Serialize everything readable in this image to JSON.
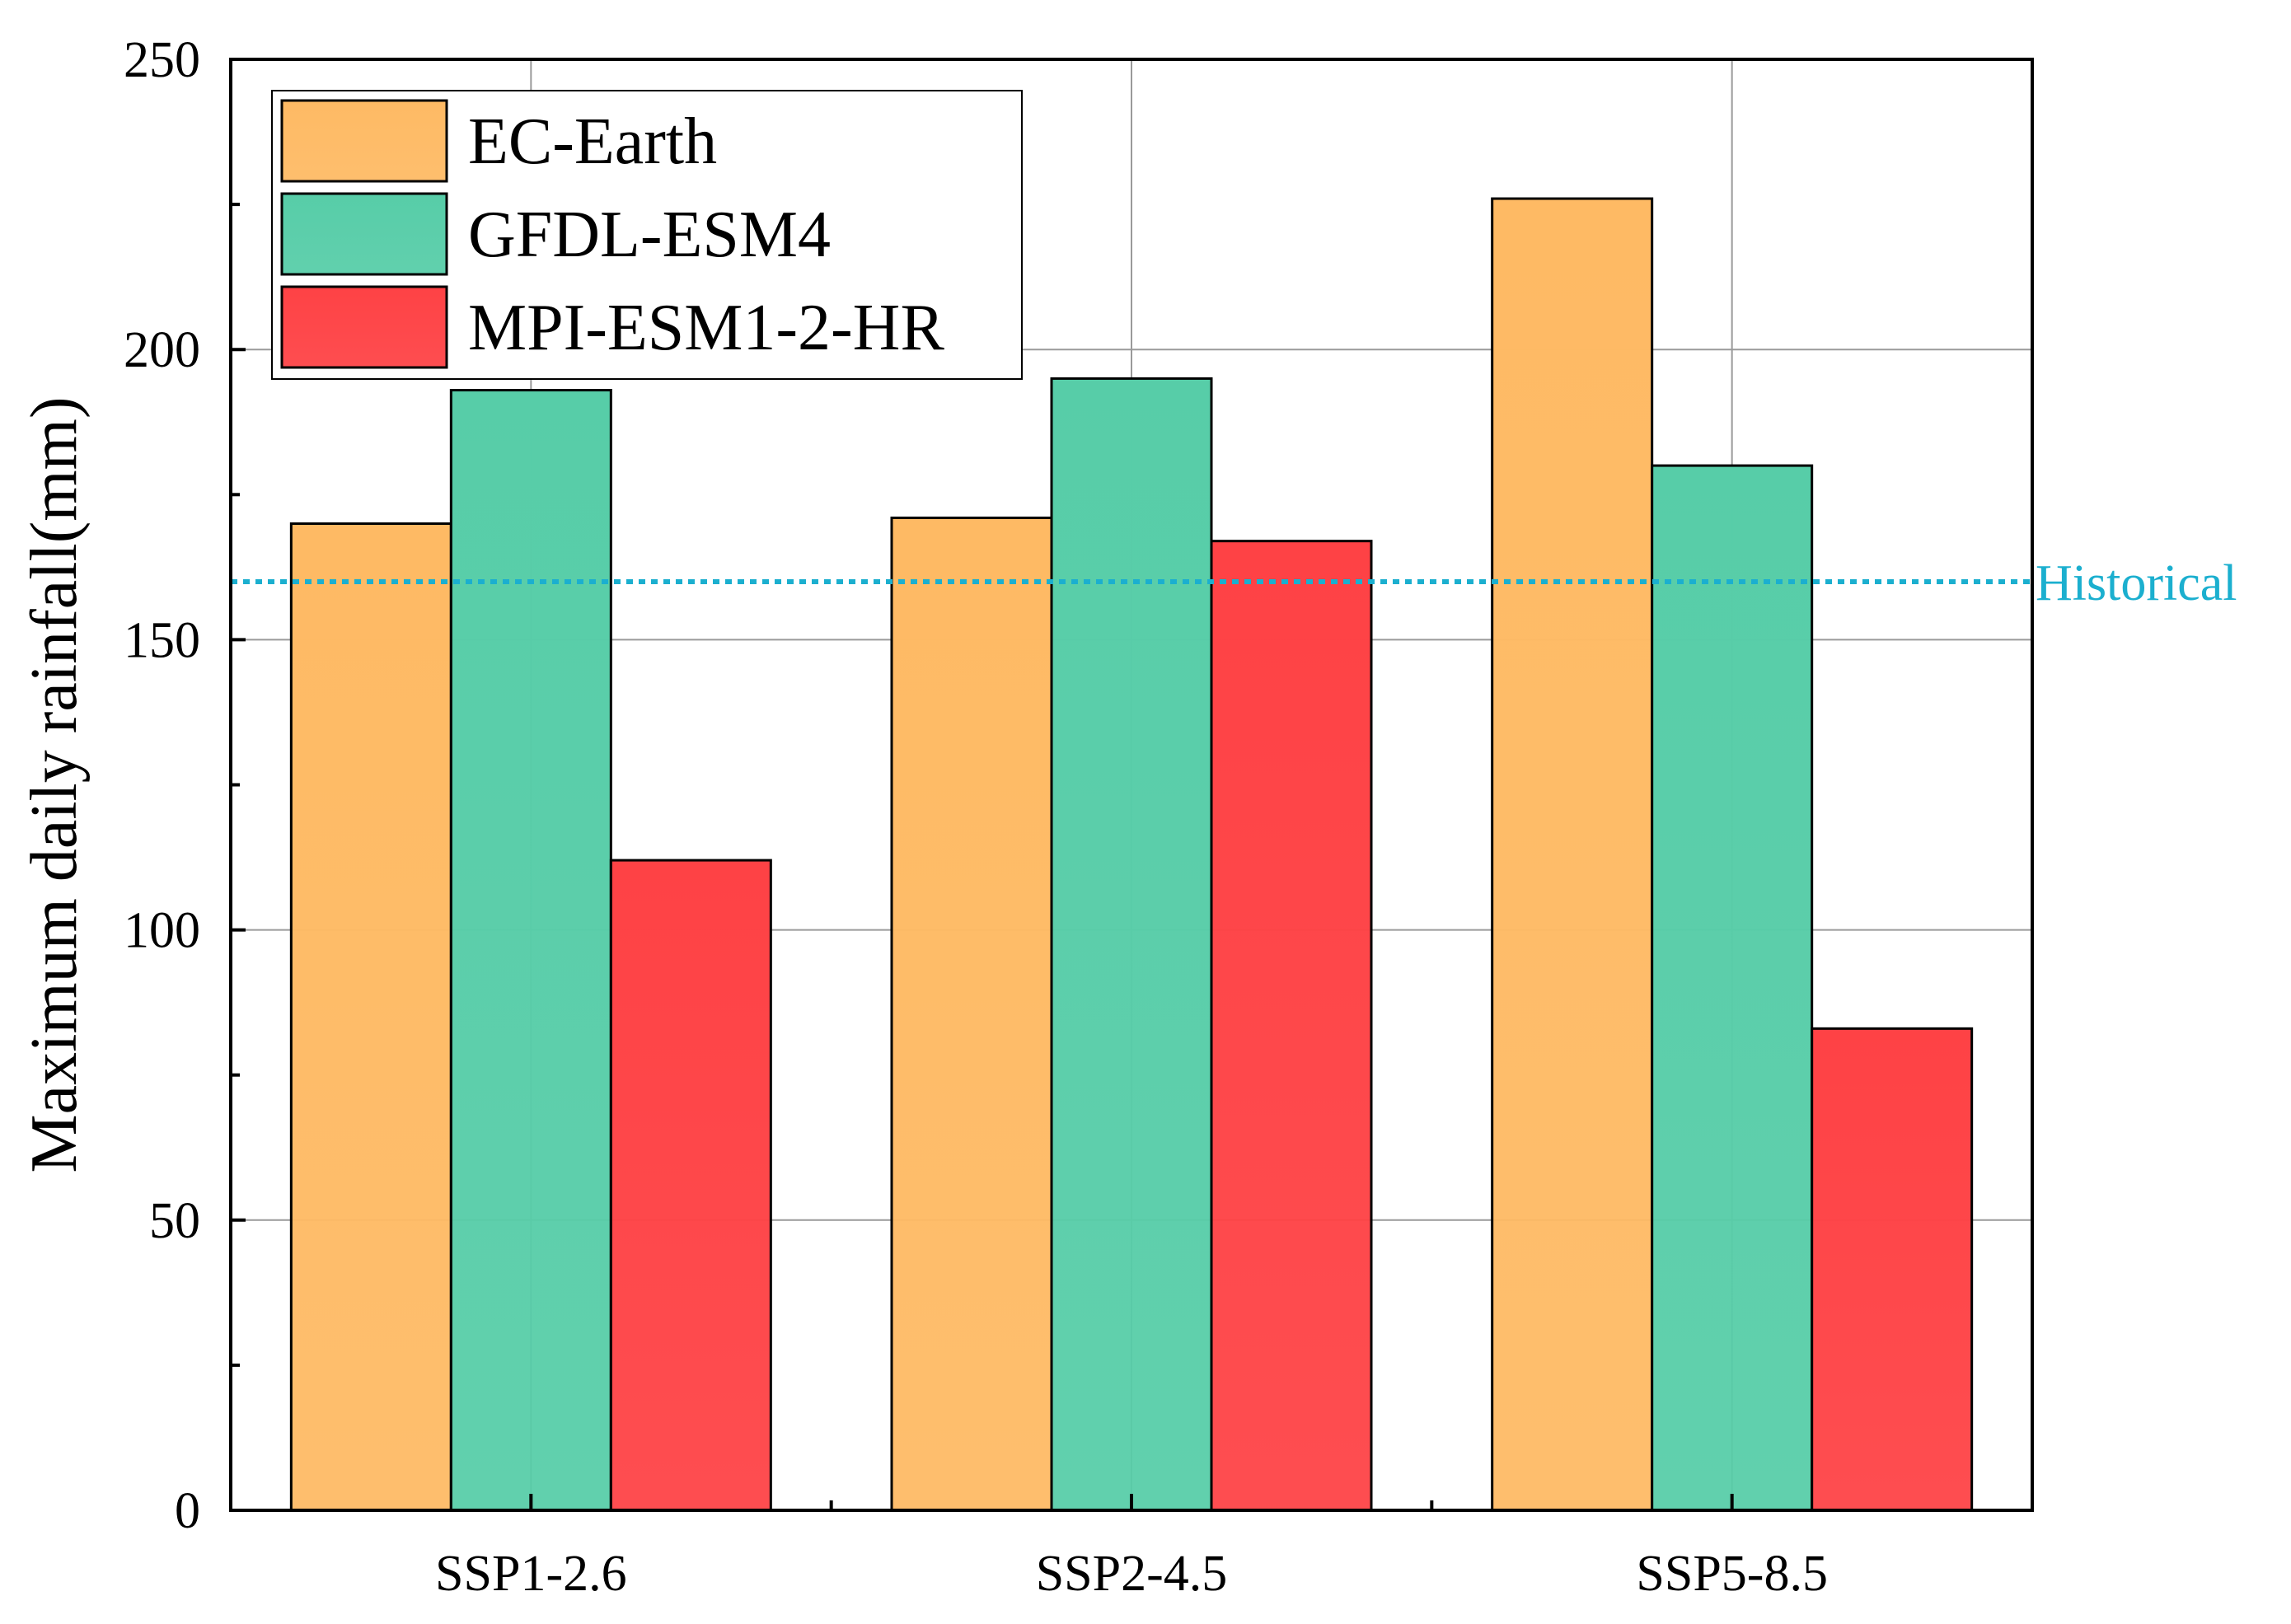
{
  "chart_data": {
    "type": "bar",
    "categories": [
      "SSP1-2.6",
      "SSP2-4.5",
      "SSP5-8.5"
    ],
    "series": [
      {
        "name": "EC-Earth",
        "values": [
          170,
          171,
          226
        ],
        "color": "#FEBA64"
      },
      {
        "name": "GFDL-ESM4",
        "values": [
          193,
          195,
          180
        ],
        "color": "#57CDA8"
      },
      {
        "name": "MPI-ESM1-2-HR",
        "values": [
          112,
          167,
          83
        ],
        "color": "#FE4245"
      }
    ],
    "title": "",
    "xlabel": "",
    "ylabel": "Maximum daily rainfall(mm)",
    "ylim": [
      0,
      250
    ],
    "yticks": [
      "0",
      "50",
      "100",
      "150",
      "200",
      "250"
    ],
    "grid": true,
    "legend_position": "top-left",
    "reference_line": {
      "label": "Historical",
      "value": 160,
      "color": "#1BAFCF",
      "style": "dotted"
    }
  }
}
